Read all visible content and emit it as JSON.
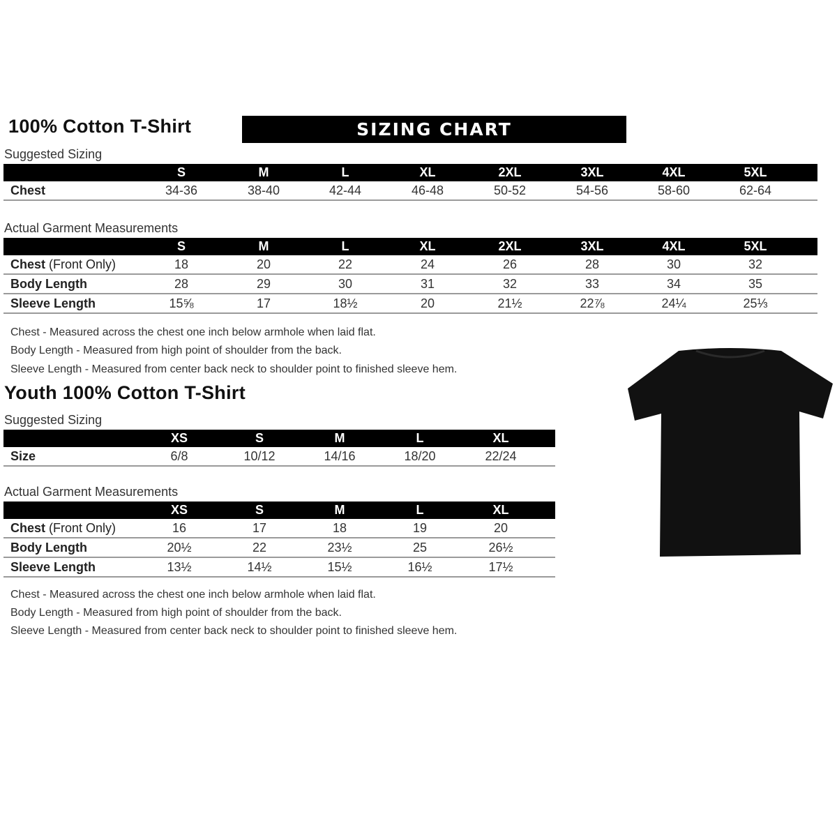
{
  "adult": {
    "title": "100% Cotton T-Shirt",
    "banner": "SIZING CHART",
    "suggested": {
      "label": "Suggested Sizing",
      "sizes": [
        "S",
        "M",
        "L",
        "XL",
        "2XL",
        "3XL",
        "4XL",
        "5XL"
      ],
      "rows": [
        {
          "label": "Chest",
          "values": [
            "34-36",
            "38-40",
            "42-44",
            "46-48",
            "50-52",
            "54-56",
            "58-60",
            "62-64"
          ]
        }
      ]
    },
    "actual": {
      "label": "Actual Garment Measurements",
      "sizes": [
        "S",
        "M",
        "L",
        "XL",
        "2XL",
        "3XL",
        "4XL",
        "5XL"
      ],
      "rows": [
        {
          "label": "Chest",
          "label_extra": " (Front Only)",
          "values": [
            "18",
            "20",
            "22",
            "24",
            "26",
            "28",
            "30",
            "32"
          ]
        },
        {
          "label": "Body Length",
          "values": [
            "28",
            "29",
            "30",
            "31",
            "32",
            "33",
            "34",
            "35"
          ]
        },
        {
          "label": "Sleeve Length",
          "values": [
            "15⅝",
            "17",
            "18½",
            "20",
            "21½",
            "22⅞",
            "24¼",
            "25⅓"
          ]
        }
      ]
    },
    "notes": [
      "Chest - Measured across the chest one inch below armhole when laid flat.",
      "Body Length - Measured from high point of shoulder from the back.",
      "Sleeve Length - Measured from center back neck to shoulder point to finished sleeve hem."
    ]
  },
  "youth": {
    "title": "Youth 100% Cotton T-Shirt",
    "suggested": {
      "label": "Suggested Sizing",
      "sizes": [
        "XS",
        "S",
        "M",
        "L",
        "XL"
      ],
      "rows": [
        {
          "label": "Size",
          "values": [
            "6/8",
            "10/12",
            "14/16",
            "18/20",
            "22/24"
          ]
        }
      ]
    },
    "actual": {
      "label": "Actual Garment Measurements",
      "sizes": [
        "XS",
        "S",
        "M",
        "L",
        "XL"
      ],
      "rows": [
        {
          "label": "Chest",
          "label_extra": " (Front Only)",
          "values": [
            "16",
            "17",
            "18",
            "19",
            "20"
          ]
        },
        {
          "label": "Body Length",
          "values": [
            "20½",
            "22",
            "23½",
            "25",
            "26½"
          ]
        },
        {
          "label": "Sleeve Length",
          "values": [
            "13½",
            "14½",
            "15½",
            "16½",
            "17½"
          ]
        }
      ]
    },
    "notes": [
      "Chest - Measured across the chest one inch below armhole when laid flat.",
      "Body Length - Measured from high point of shoulder from the back.",
      "Sleeve Length - Measured from center back neck to shoulder point to finished sleeve hem."
    ]
  },
  "colors": {
    "header_bar": "#000000",
    "shirt": "#111111",
    "row_divider": "#9a9a9a"
  }
}
